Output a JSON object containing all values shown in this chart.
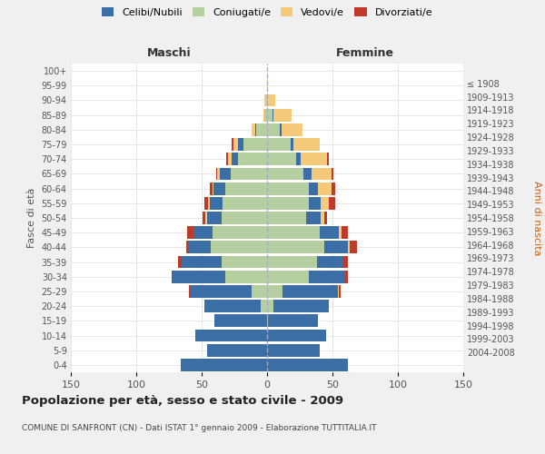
{
  "age_groups": [
    "0-4",
    "5-9",
    "10-14",
    "15-19",
    "20-24",
    "25-29",
    "30-34",
    "35-39",
    "40-44",
    "45-49",
    "50-54",
    "55-59",
    "60-64",
    "65-69",
    "70-74",
    "75-79",
    "80-84",
    "85-89",
    "90-94",
    "95-99",
    "100+"
  ],
  "birth_years": [
    "2004-2008",
    "1999-2003",
    "1994-1998",
    "1989-1993",
    "1984-1988",
    "1979-1983",
    "1974-1978",
    "1969-1973",
    "1964-1968",
    "1959-1963",
    "1954-1958",
    "1949-1953",
    "1944-1948",
    "1939-1943",
    "1934-1938",
    "1929-1933",
    "1924-1928",
    "1919-1923",
    "1914-1918",
    "1909-1913",
    "≤ 1908"
  ],
  "maschi": {
    "celibi": [
      66,
      46,
      55,
      40,
      43,
      47,
      40,
      30,
      17,
      14,
      11,
      10,
      9,
      8,
      5,
      4,
      1,
      0,
      0,
      0,
      0
    ],
    "coniugati": [
      0,
      0,
      0,
      0,
      5,
      12,
      32,
      35,
      43,
      42,
      35,
      34,
      32,
      28,
      22,
      18,
      8,
      2,
      1,
      0,
      0
    ],
    "vedovi": [
      0,
      0,
      0,
      0,
      0,
      0,
      0,
      0,
      0,
      0,
      1,
      1,
      1,
      2,
      3,
      4,
      3,
      1,
      1,
      0,
      0
    ],
    "divorziati": [
      0,
      0,
      0,
      0,
      0,
      1,
      1,
      3,
      2,
      5,
      2,
      3,
      2,
      1,
      1,
      1,
      0,
      0,
      0,
      0,
      0
    ]
  },
  "femmine": {
    "nubili": [
      62,
      40,
      45,
      38,
      42,
      42,
      28,
      20,
      18,
      15,
      11,
      9,
      7,
      6,
      4,
      2,
      1,
      1,
      0,
      0,
      0
    ],
    "coniugate": [
      0,
      0,
      0,
      1,
      5,
      12,
      32,
      38,
      44,
      40,
      30,
      32,
      32,
      28,
      22,
      18,
      10,
      4,
      1,
      0,
      0
    ],
    "vedove": [
      0,
      0,
      0,
      0,
      0,
      1,
      0,
      0,
      1,
      2,
      3,
      6,
      10,
      15,
      20,
      20,
      16,
      14,
      5,
      1,
      0
    ],
    "divorziate": [
      0,
      0,
      0,
      0,
      0,
      1,
      2,
      4,
      6,
      5,
      2,
      5,
      3,
      2,
      1,
      0,
      0,
      0,
      0,
      0,
      0
    ]
  },
  "colors": {
    "celibi": "#3a6ea5",
    "coniugati": "#b5cfa0",
    "vedovi": "#f5c97a",
    "divorziati": "#c0392b"
  },
  "xlim": 150,
  "title": "Popolazione per età, sesso e stato civile - 2009",
  "subtitle": "COMUNE DI SANFRONT (CN) - Dati ISTAT 1° gennaio 2009 - Elaborazione TUTTITALIA.IT",
  "xlabel_left": "Maschi",
  "xlabel_right": "Femmine",
  "ylabel_left": "Fasce di età",
  "ylabel_right": "Anni di nascita",
  "legend_labels": [
    "Celibi/Nubili",
    "Coniugati/e",
    "Vedovi/e",
    "Divorziati/e"
  ],
  "bg_color": "#f0f0f0",
  "plot_bg_color": "#ffffff"
}
